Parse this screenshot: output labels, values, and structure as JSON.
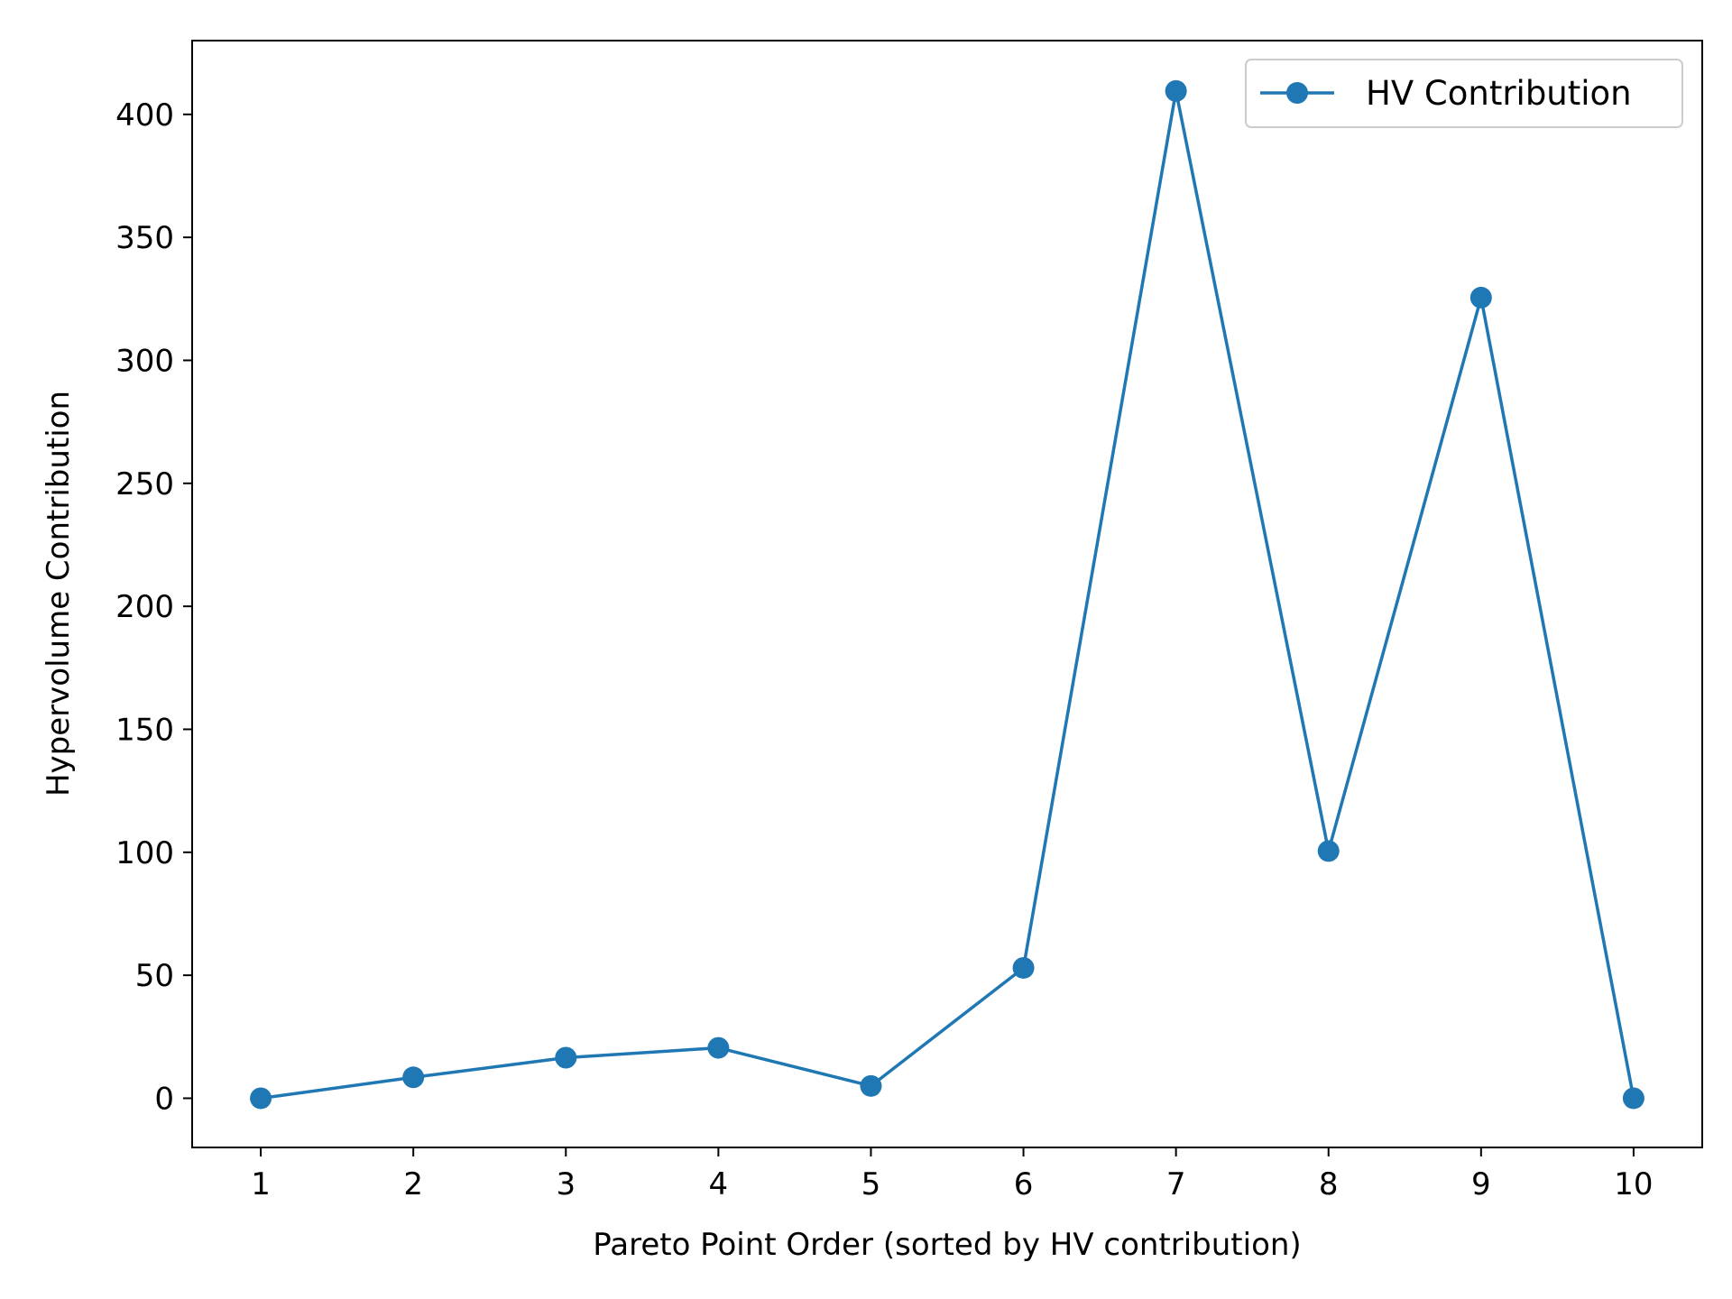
{
  "chart_data": {
    "type": "line",
    "title": "",
    "xlabel": "Pareto Point Order (sorted by HV contribution)",
    "ylabel": "Hypervolume Contribution",
    "x": [
      1,
      2,
      3,
      4,
      5,
      6,
      7,
      8,
      9,
      10
    ],
    "xticks": [
      "1",
      "2",
      "3",
      "4",
      "5",
      "6",
      "7",
      "8",
      "9",
      "10"
    ],
    "yticks": [
      "0",
      "50",
      "100",
      "150",
      "200",
      "250",
      "300",
      "350",
      "400"
    ],
    "xlim": [
      0.55,
      10.45
    ],
    "ylim": [
      -20,
      430
    ],
    "grid": false,
    "legend": "top-right",
    "series": [
      {
        "name": "HV Contribution",
        "color": "#1f77b4",
        "marker": "circle",
        "values": [
          0.0,
          8.5,
          16.5,
          20.5,
          5.0,
          53.0,
          409.5,
          100.5,
          325.5,
          0.0
        ]
      }
    ]
  }
}
